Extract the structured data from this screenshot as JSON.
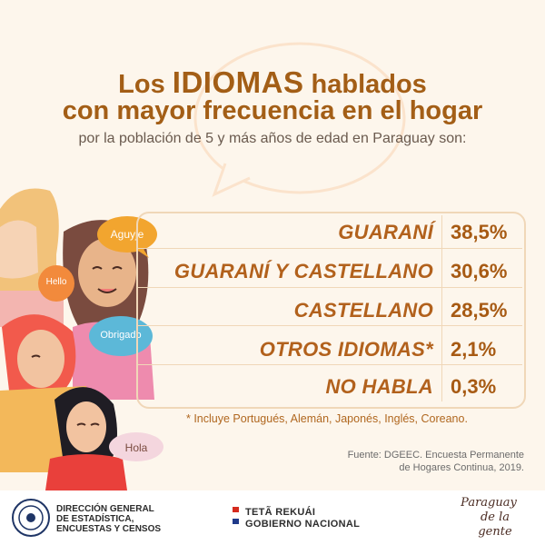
{
  "title": {
    "line1_pre": "Los",
    "line1_highlight": "IDIOMAS",
    "line1_post": "hablados",
    "line2": "con mayor frecuencia en el hogar",
    "subtitle": "por la población de 5 y más años de edad en Paraguay son:"
  },
  "bubbles": {
    "aguyje": "Aguyje",
    "hello": "Hello",
    "obrigado": "Obrigado",
    "hola": "Hola"
  },
  "table": {
    "rows": [
      {
        "category": "GUARANÍ",
        "value": "38,5%",
        "percent": 38.5
      },
      {
        "category": "GUARANÍ Y CASTELLANO",
        "value": "30,6%",
        "percent": 30.6
      },
      {
        "category": "CASTELLANO",
        "value": "28,5%",
        "percent": 28.5
      },
      {
        "category": "OTROS IDIOMAS*",
        "value": "2,1%",
        "percent": 2.1
      },
      {
        "category": "NO HABLA",
        "value": "0,3%",
        "percent": 0.3
      }
    ]
  },
  "footnote": "* Incluye Portugués, Alemán, Japonés,  Inglés, Coreano.",
  "source": {
    "line1": "Fuente: DGEEC. Encuesta Permanente",
    "line2": "de Hogares Continua, 2019."
  },
  "footer": {
    "dgeec_line1": "DIRECCIÓN GENERAL",
    "dgeec_line2": "DE ESTADÍSTICA,",
    "dgeec_line3": "ENCUESTAS Y CENSOS",
    "gov_line1": "TETÃ REKUÁI",
    "gov_line2": "GOBIERNO NACIONAL",
    "brand_line1": "Paraguay",
    "brand_line2": "de la gente"
  },
  "colors": {
    "background": "#fdf6ec",
    "title": "#a35e16",
    "category": "#b2611c",
    "border": "#f0d7b8"
  }
}
